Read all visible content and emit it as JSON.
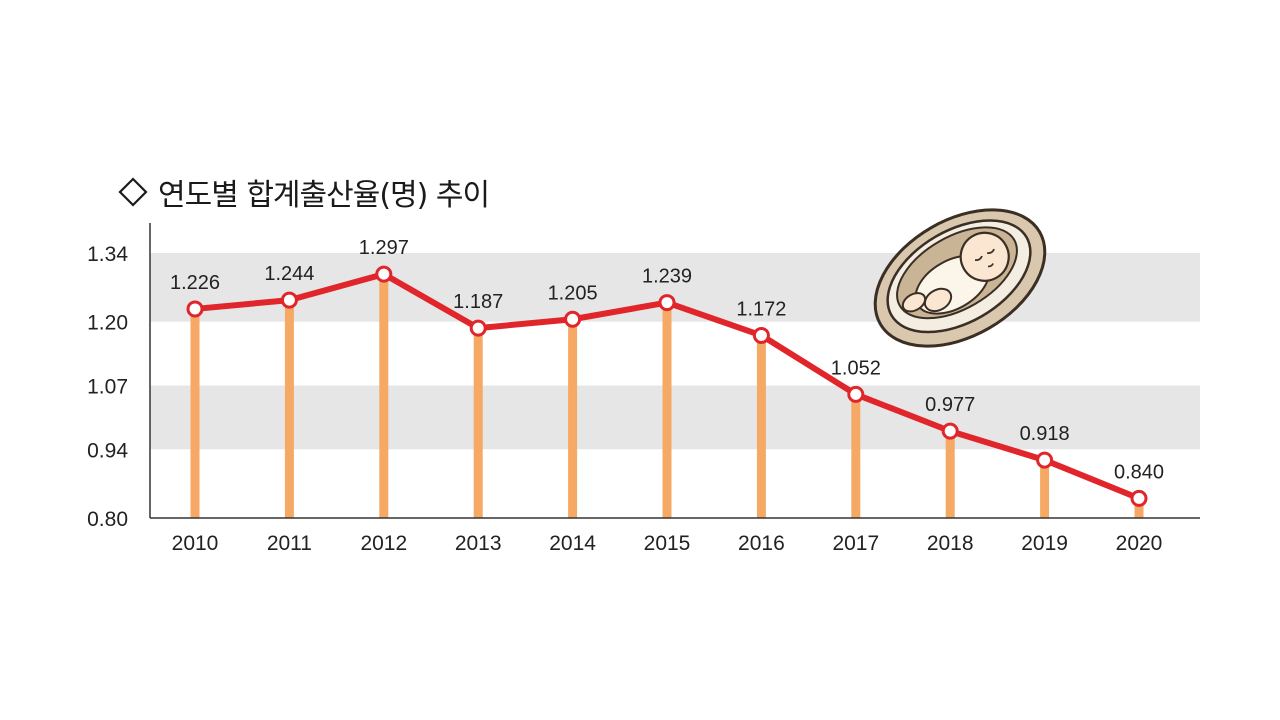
{
  "title": "연도별 합계출산율(명) 추이",
  "colors": {
    "line": "#e0262a",
    "bar": "#f5a965",
    "band": "#e6e6e6",
    "marker_fill": "#ffffff",
    "text": "#222222"
  },
  "chart_data": {
    "type": "line",
    "title": "연도별 합계출산율(명) 추이",
    "xlabel": "",
    "ylabel": "",
    "categories": [
      "2010",
      "2011",
      "2012",
      "2013",
      "2014",
      "2015",
      "2016",
      "2017",
      "2018",
      "2019",
      "2020"
    ],
    "series": [
      {
        "values": [
          1.226,
          1.244,
          1.297,
          1.187,
          1.205,
          1.239,
          1.172,
          1.052,
          0.977,
          0.918,
          0.84
        ]
      }
    ],
    "data_labels": [
      "1.226",
      "1.244",
      "1.297",
      "1.187",
      "1.205",
      "1.239",
      "1.172",
      "1.052",
      "0.977",
      "0.918",
      "0.840"
    ],
    "y_ticks": [
      0.8,
      0.94,
      1.07,
      1.2,
      1.34
    ],
    "y_tick_labels": [
      "0.80",
      "0.94",
      "1.07",
      "1.20",
      "1.34"
    ],
    "ylim": [
      0.8,
      1.34
    ],
    "shaded_bands": [
      [
        0.94,
        1.07
      ],
      [
        1.2,
        1.34
      ]
    ],
    "grid": false,
    "drop_lines": true,
    "illustration": "baby-in-bassinet-icon"
  }
}
